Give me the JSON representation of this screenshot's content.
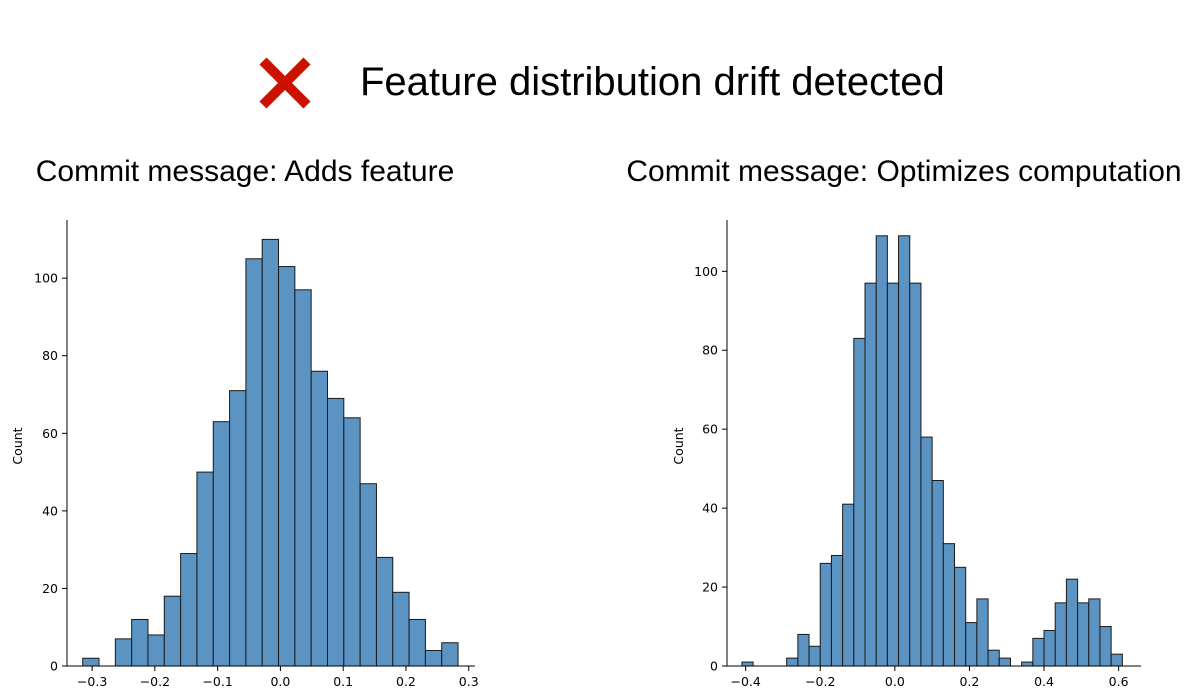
{
  "banner": {
    "status_icon": "red-x-icon",
    "status_color": "#cc1100",
    "title": "Feature distribution drift detected"
  },
  "bar_color": "#5b94c2",
  "chart_data": [
    {
      "type": "bar",
      "title": "Commit message: Adds feature",
      "xlabel": "",
      "ylabel": "Count",
      "xlim": [
        -0.34,
        0.31
      ],
      "ylim": [
        0,
        115
      ],
      "xticks": [
        -0.3,
        -0.2,
        -0.1,
        0.0,
        0.1,
        0.2,
        0.3
      ],
      "xtick_labels": [
        "−0.3",
        "−0.2",
        "−0.1",
        "0.0",
        "0.1",
        "0.2",
        "0.3"
      ],
      "yticks": [
        0,
        20,
        40,
        60,
        80,
        100
      ],
      "ytick_labels": [
        "0",
        "20",
        "40",
        "60",
        "80",
        "100"
      ],
      "bin_edges": [
        -0.315,
        -0.289,
        -0.263,
        -0.237,
        -0.211,
        -0.185,
        -0.159,
        -0.133,
        -0.107,
        -0.081,
        -0.055,
        -0.029,
        -0.003,
        0.023,
        0.049,
        0.075,
        0.101,
        0.127,
        0.153,
        0.179,
        0.205,
        0.231,
        0.257,
        0.283
      ],
      "counts": [
        2,
        0,
        7,
        12,
        8,
        18,
        29,
        50,
        63,
        71,
        105,
        110,
        103,
        97,
        76,
        69,
        64,
        47,
        28,
        19,
        12,
        4,
        6
      ]
    },
    {
      "type": "bar",
      "title": "Commit message: Optimizes computation",
      "xlabel": "",
      "ylabel": "Count",
      "xlim": [
        -0.45,
        0.66
      ],
      "ylim": [
        0,
        113
      ],
      "xticks": [
        -0.4,
        -0.2,
        0.0,
        0.2,
        0.4,
        0.6
      ],
      "xtick_labels": [
        "−0.4",
        "−0.2",
        "0.0",
        "0.2",
        "0.4",
        "0.6"
      ],
      "yticks": [
        0,
        20,
        40,
        60,
        80,
        100
      ],
      "ytick_labels": [
        "0",
        "20",
        "40",
        "60",
        "80",
        "100"
      ],
      "bin_edges": [
        -0.41,
        -0.38,
        -0.35,
        -0.32,
        -0.29,
        -0.26,
        -0.23,
        -0.2,
        -0.17,
        -0.14,
        -0.11,
        -0.08,
        -0.05,
        -0.02,
        0.01,
        0.04,
        0.07,
        0.1,
        0.13,
        0.16,
        0.19,
        0.22,
        0.25,
        0.28,
        0.31,
        0.34,
        0.37,
        0.4,
        0.43,
        0.46,
        0.49,
        0.52,
        0.55,
        0.58,
        0.61
      ],
      "counts": [
        1,
        0,
        0,
        0,
        2,
        8,
        5,
        26,
        28,
        41,
        83,
        97,
        109,
        97,
        109,
        97,
        58,
        47,
        31,
        25,
        11,
        17,
        4,
        2,
        0,
        1,
        7,
        9,
        16,
        22,
        16,
        17,
        10,
        3
      ]
    }
  ]
}
